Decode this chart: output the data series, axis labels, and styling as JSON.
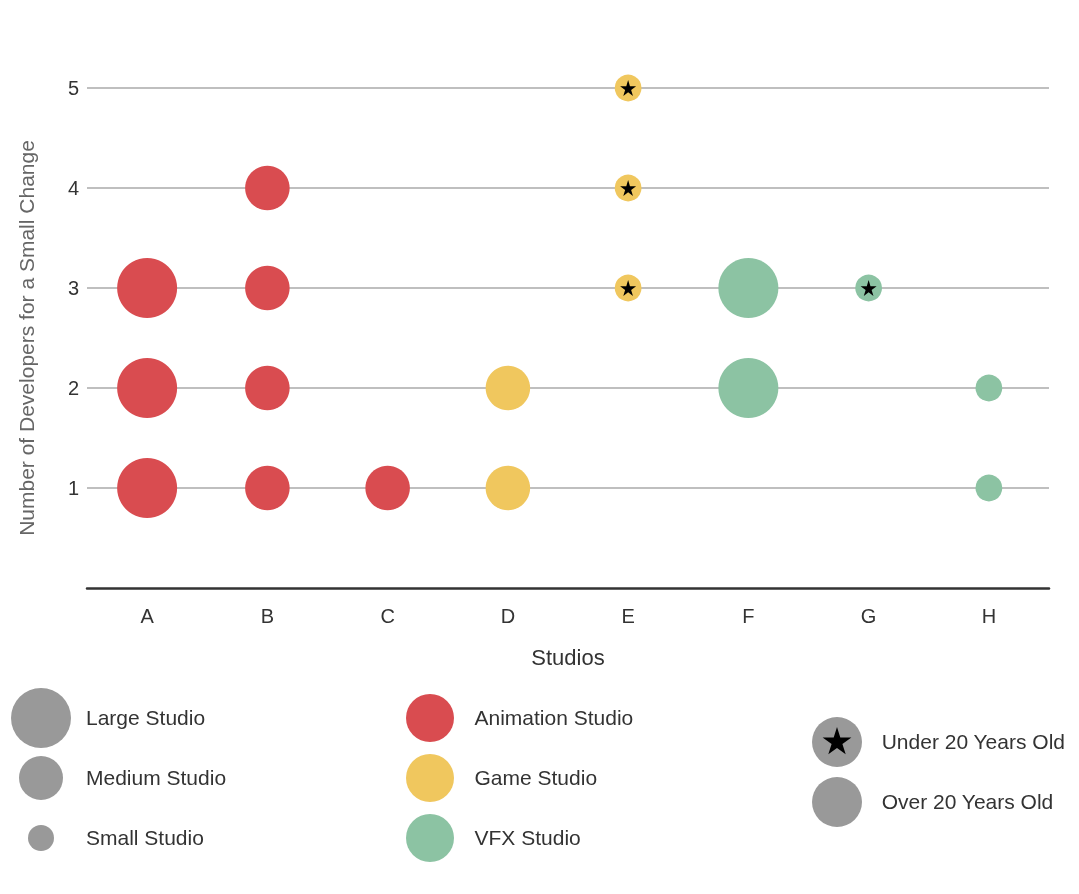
{
  "chart_data": {
    "type": "bubble",
    "xlabel": "Studios",
    "ylabel": "Number of Developers for a Small Change",
    "categories": [
      "A",
      "B",
      "C",
      "D",
      "E",
      "F",
      "G",
      "H"
    ],
    "ylim": [
      0,
      5
    ],
    "yticks": [
      1,
      2,
      3,
      4,
      5
    ],
    "grid": "y",
    "legend": "bottom",
    "size_legend": [
      {
        "value": 1,
        "label": "Large Studio"
      },
      {
        "value": 0.55,
        "label": "Medium Studio"
      },
      {
        "value": 0.2,
        "label": "Small Studio"
      }
    ],
    "series": [
      {
        "name": "Animation Studio",
        "color": "#d94c50",
        "x": [
          "A",
          "A",
          "A",
          "B",
          "B",
          "B",
          "B",
          "C"
        ],
        "values": [
          1,
          2,
          3,
          1,
          2,
          3,
          4,
          1
        ],
        "sizes": [
          1,
          1,
          1,
          0.55,
          0.55,
          0.55,
          0.55,
          0.55
        ]
      },
      {
        "name": "Game Studio",
        "color": "#f0c75e",
        "x": [
          "D",
          "D",
          "E",
          "E",
          "E"
        ],
        "values": [
          1,
          2,
          3,
          4,
          5
        ],
        "sizes": [
          0.55,
          0.55,
          0.2,
          0.2,
          0.2
        ]
      },
      {
        "name": "VFX Studio",
        "color": "#8cc3a3",
        "x": [
          "F",
          "F",
          "G",
          "H",
          "H"
        ],
        "values": [
          2,
          3,
          3,
          1,
          2
        ],
        "sizes": [
          1,
          1,
          0.2,
          0.2,
          0.2
        ]
      },
      {
        "name": "Under 20 Years Old",
        "type": "scatter",
        "marker": "star",
        "color": "#000000",
        "x": [
          "E",
          "E",
          "E",
          "G"
        ],
        "values": [
          3,
          4,
          5,
          3
        ]
      }
    ],
    "annotations": [
      "Over 20 Years Old"
    ]
  }
}
